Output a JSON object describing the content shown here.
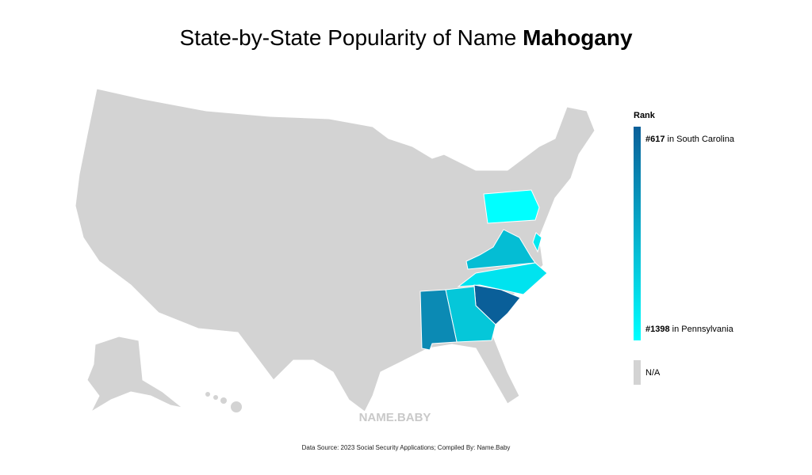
{
  "title": {
    "prefix": "State-by-State Popularity of Name",
    "name": "Mahogany"
  },
  "legend": {
    "title": "Rank",
    "top": {
      "rank": "#617",
      "state": "in South Carolina"
    },
    "bottom": {
      "rank": "#1398",
      "state": "in Pennsylvania"
    },
    "na": "N/A"
  },
  "watermark": "NAME.BABY",
  "source": "Data Source: 2023 Social Security Applications; Compiled By: Name.Baby"
}
